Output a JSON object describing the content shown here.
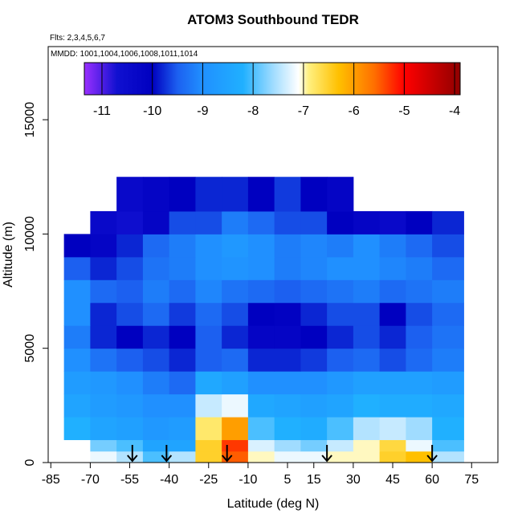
{
  "chart_data": {
    "type": "heatmap",
    "title": "ATOM3 Southbound TEDR",
    "subtitle": "Flts: 2,3,4,5,6,7",
    "annotation": "MMDD: 1001,1004,1006,1008,1011,1014",
    "xlabel": "Latitude (deg N)",
    "ylabel": "Altitude (m)",
    "xlim": [
      -86,
      85
    ],
    "ylim": [
      0,
      18200
    ],
    "xticks": [
      -85,
      -70,
      -55,
      -40,
      -25,
      -10,
      5,
      15,
      30,
      45,
      60,
      75
    ],
    "yticks": [
      0,
      5000,
      10000,
      15000
    ],
    "x_edges": [
      -80,
      -70,
      -60,
      -50,
      -40,
      -30,
      -20,
      -10,
      0,
      10,
      20,
      30,
      40,
      50,
      60,
      72
    ],
    "y_edges": [
      0,
      500,
      1000,
      2000,
      3000,
      4000,
      5000,
      6000,
      7000,
      8000,
      9000,
      10000,
      11000,
      12500
    ],
    "z": [
      [
        null,
        -7.2,
        -7.5,
        -8,
        -7.5,
        -6.5,
        -5.5,
        -7,
        -7.2,
        -7.2,
        -7,
        -7,
        -6.5,
        -6.3,
        -7.5
      ],
      [
        null,
        -7.8,
        -8,
        -8.5,
        -8.5,
        -6.5,
        -5.3,
        -7.3,
        -7.6,
        -7.8,
        -7.4,
        -7,
        -6.6,
        -7.2,
        -8
      ],
      [
        -8.2,
        -8.5,
        -8.6,
        -8.8,
        -8.7,
        -6.8,
        -6,
        -8,
        -8.2,
        -8.3,
        -8,
        -7.5,
        -7.4,
        -7.6,
        -8.2
      ],
      [
        -8.5,
        -8.7,
        -8.8,
        -9,
        -9,
        -7.4,
        -7.2,
        -8.4,
        -8.5,
        -8.6,
        -8.5,
        -8.2,
        -8.3,
        -8.3,
        -8.4
      ],
      [
        -8.7,
        -8.8,
        -9,
        -9.2,
        -9.4,
        -8.4,
        -8.6,
        -9,
        -9,
        -9,
        -8.8,
        -8.6,
        -8.6,
        -8.6,
        -8.7
      ],
      [
        -9,
        -9.3,
        -9.5,
        -9.6,
        -9.8,
        -9.5,
        -9.4,
        -9.8,
        -9.8,
        -9.7,
        -9.5,
        -9.4,
        -9.6,
        -9.4,
        -9.2
      ],
      [
        -9.2,
        -9.8,
        -10,
        -9.8,
        -10,
        -9.5,
        -9.8,
        -10.2,
        -10.2,
        -10,
        -9.8,
        -9.6,
        -9.8,
        -9.5,
        -9.3
      ],
      [
        -9,
        -9.8,
        -9.6,
        -9.4,
        -9.7,
        -9.4,
        -9.6,
        -10,
        -10.1,
        -9.8,
        -9.6,
        -9.6,
        -10,
        -9.6,
        -9.4
      ],
      [
        -9,
        -9.4,
        -9.5,
        -9.2,
        -9.4,
        -9.1,
        -9.3,
        -9.4,
        -9.5,
        -9.4,
        -9.3,
        -9.2,
        -9.4,
        -9.3,
        -9.2
      ],
      [
        -9.5,
        -9.8,
        -9.6,
        -9.3,
        -9.2,
        -9,
        -8.9,
        -9,
        -9.2,
        -9.1,
        -9,
        -9,
        -9.1,
        -9.2,
        -9.4
      ],
      [
        -10,
        -10.2,
        -9.8,
        -9.4,
        -9.2,
        -9,
        -8.8,
        -9,
        -9.2,
        -9.1,
        -9.2,
        -9,
        -9.2,
        -9.4,
        -9.6
      ],
      [
        null,
        -10.4,
        -10.6,
        -10.2,
        -9.6,
        -9.6,
        -9.2,
        -9.4,
        -9.6,
        -9.6,
        -10,
        -10.2,
        -10.4,
        -10,
        -9.8
      ],
      [
        null,
        null,
        -10.4,
        -10.2,
        -10,
        -9.8,
        -9.8,
        -10,
        -9.7,
        -10,
        -10.2,
        null,
        null,
        null,
        null
      ]
    ],
    "clim": [
      -11.35,
      -3.89
    ],
    "cticks": [
      -11,
      -10,
      -9,
      -8,
      -7,
      -6,
      -5,
      -4
    ],
    "colorscale": [
      {
        "value": -11.35,
        "color": "#9a30ff"
      },
      {
        "value": -10.7,
        "color": "#1010d0"
      },
      {
        "value": -10.0,
        "color": "#0000c0"
      },
      {
        "value": -9.5,
        "color": "#1c60f0"
      },
      {
        "value": -9.0,
        "color": "#2090ff"
      },
      {
        "value": -8.2,
        "color": "#20b0ff"
      },
      {
        "value": -7.6,
        "color": "#a0dcff"
      },
      {
        "value": -7.1,
        "color": "#ffffff"
      },
      {
        "value": -6.9,
        "color": "#fff080"
      },
      {
        "value": -6.3,
        "color": "#ffc000"
      },
      {
        "value": -5.6,
        "color": "#ff7000"
      },
      {
        "value": -5.0,
        "color": "#ff0000"
      },
      {
        "value": -3.89,
        "color": "#900000"
      }
    ],
    "markers": [
      -54,
      -41,
      -18,
      20,
      60
    ]
  }
}
